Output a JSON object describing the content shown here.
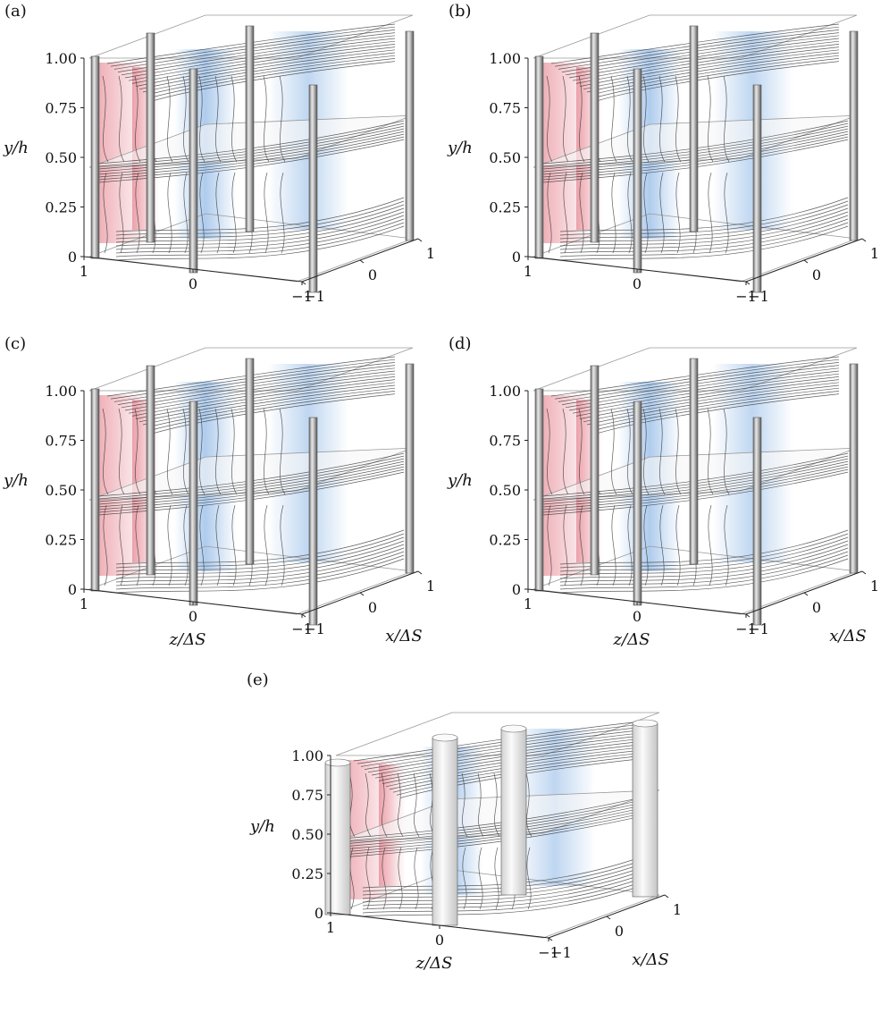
{
  "colors": {
    "positive": "#e06a78",
    "negative": "#4d8ed8",
    "streamline": "#2a2a2a",
    "cylinder": "#8c8c8c"
  },
  "panels": [
    {
      "label": "(a)",
      "y_ticks": [
        "1.00",
        "0.75",
        "0.50",
        "0.25",
        "0"
      ],
      "z_ticks": [
        "1",
        "0",
        "−1"
      ],
      "x_ticks": [
        "−1",
        "0",
        "1"
      ],
      "show_axis_titles": false
    },
    {
      "label": "(b)",
      "y_ticks": [
        "1.00",
        "0.75",
        "0.50",
        "0.25",
        "0"
      ],
      "z_ticks": [
        "1",
        "0",
        "−1"
      ],
      "x_ticks": [
        "−1",
        "0",
        "1"
      ],
      "show_axis_titles": false
    },
    {
      "label": "(c)",
      "y_ticks": [
        "1.00",
        "0.75",
        "0.50",
        "0.25",
        "0"
      ],
      "z_ticks": [
        "1",
        "0",
        "−1"
      ],
      "x_ticks": [
        "−1",
        "0",
        "1"
      ],
      "show_axis_titles": true
    },
    {
      "label": "(d)",
      "y_ticks": [
        "1.00",
        "0.75",
        "0.50",
        "0.25",
        "0"
      ],
      "z_ticks": [
        "1",
        "0",
        "−1"
      ],
      "x_ticks": [
        "−1",
        "0",
        "1"
      ],
      "show_axis_titles": true
    },
    {
      "label": "(e)",
      "y_ticks": [
        "1.00",
        "0.75",
        "0.50",
        "0.25",
        "0"
      ],
      "z_ticks": [
        "1",
        "0",
        "−1"
      ],
      "x_ticks": [
        "−1",
        "0",
        "1"
      ],
      "show_axis_titles": true
    }
  ],
  "axis_titles": {
    "y": "y/h",
    "z": "z/ΔS",
    "x": "x/ΔS"
  }
}
